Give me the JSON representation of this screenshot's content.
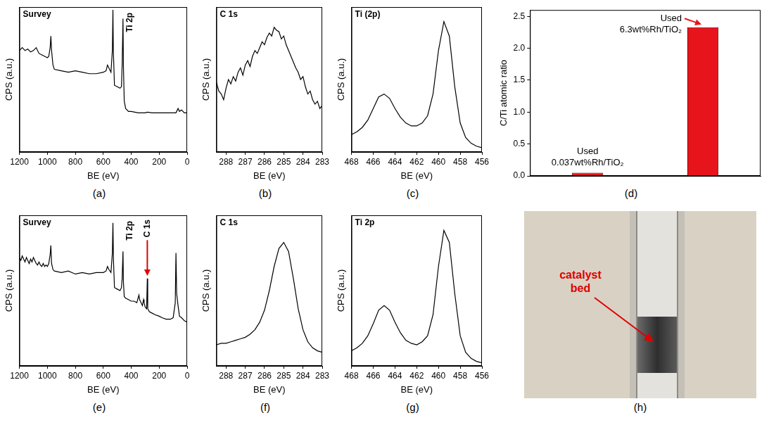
{
  "chart_data": [
    {
      "panel": "(a)",
      "type": "line",
      "title": "Survey",
      "x_label": "BE (eV)",
      "y_label": "CPS (a.u.)",
      "x": [
        1200,
        1180,
        1160,
        1140,
        1120,
        1100,
        1080,
        1060,
        1040,
        1020,
        1000,
        990,
        980,
        975,
        970,
        960,
        950,
        900,
        850,
        800,
        750,
        700,
        650,
        600,
        580,
        570,
        560,
        545,
        535,
        531,
        528,
        520,
        500,
        480,
        470,
        465,
        459,
        456,
        450,
        440,
        420,
        400,
        350,
        300,
        285,
        250,
        200,
        150,
        100,
        80,
        65,
        55,
        40,
        20,
        0
      ],
      "values": [
        70,
        72,
        70,
        71,
        69,
        70,
        72,
        68,
        67,
        66,
        65,
        66,
        72,
        80,
        70,
        60,
        57,
        56,
        55,
        56,
        55,
        54,
        54,
        55,
        56,
        60,
        58,
        55,
        70,
        98,
        70,
        46,
        45,
        44,
        45,
        60,
        92,
        60,
        35,
        30,
        28,
        28,
        27,
        27,
        27.5,
        27,
        27,
        27,
        27,
        27,
        30,
        28,
        29,
        27,
        27
      ],
      "color": "#000000",
      "xlim": [
        1200,
        0
      ],
      "xticks": [
        1200,
        1000,
        800,
        600,
        400,
        200,
        0
      ],
      "ylim": [
        0,
        100
      ],
      "yticks": [],
      "grid": false,
      "tick_labels": "x",
      "annotations": [
        {
          "text": "Ti 2p",
          "x": 459
        }
      ]
    },
    {
      "panel": "(b)",
      "type": "line",
      "title": "C 1s",
      "x_label": "BE (eV)",
      "y_label": "CPS (a.u.)",
      "x": [
        288.5,
        288.375,
        288.25,
        288.125,
        288,
        287.875,
        287.75,
        287.625,
        287.5,
        287.375,
        287.25,
        287.125,
        287,
        286.875,
        286.75,
        286.625,
        286.5,
        286.375,
        286.25,
        286.125,
        286,
        285.875,
        285.75,
        285.625,
        285.5,
        285.375,
        285.25,
        285.125,
        285,
        284.875,
        284.75,
        284.625,
        284.5,
        284.375,
        284.25,
        284.125,
        284,
        283.875,
        283.75,
        283.625,
        283.5,
        283.375,
        283.25,
        283.125,
        283
      ],
      "values": [
        48,
        42,
        40,
        36,
        44,
        50,
        47,
        52,
        49,
        55,
        58,
        53,
        60,
        63,
        59,
        66,
        70,
        68,
        72,
        76,
        74,
        79,
        82,
        80,
        86,
        84,
        83,
        78,
        80,
        74,
        70,
        66,
        62,
        58,
        55,
        50,
        52,
        45,
        40,
        42,
        36,
        33,
        35,
        30,
        32
      ],
      "color": "#000000",
      "xlim": [
        288.5,
        283
      ],
      "xticks": [
        288,
        287,
        286,
        285,
        284,
        283
      ],
      "ylim": [
        0,
        100
      ],
      "yticks": [],
      "grid": false,
      "tick_labels": "x"
    },
    {
      "panel": "(c)",
      "type": "line",
      "title": "Ti (2p)",
      "x_label": "BE (eV)",
      "y_label": "CPS (a.u.)",
      "x": [
        468,
        467.5,
        467,
        466.5,
        466,
        465.5,
        465,
        464.5,
        464,
        463.5,
        463,
        462.5,
        462,
        461.5,
        461,
        460.5,
        460,
        459.5,
        459,
        458.5,
        458,
        457.5,
        457,
        456.5,
        456
      ],
      "values": [
        12,
        14,
        17,
        22,
        30,
        38,
        40,
        37,
        30,
        24,
        20,
        18,
        18,
        20,
        25,
        40,
        70,
        90,
        80,
        45,
        20,
        10,
        6,
        4,
        3
      ],
      "color": "#000000",
      "xlim": [
        468,
        456
      ],
      "xticks": [
        468,
        466,
        464,
        462,
        460,
        458,
        456
      ],
      "ylim": [
        0,
        100
      ],
      "yticks": [],
      "grid": false,
      "tick_labels": "x"
    },
    {
      "panel": "(d)",
      "type": "bar",
      "y_label": "C/Ti atomic ratio",
      "categories": [
        null,
        null
      ],
      "values": [
        0.05,
        2.33
      ],
      "color": "#e8141b",
      "ylim": [
        0,
        2.6
      ],
      "yticks": [
        {
          "value": 0,
          "label": "0.0"
        },
        {
          "value": 0.5,
          "label": "0.5"
        },
        {
          "value": 1,
          "label": "1.0"
        },
        {
          "value": 1.5,
          "label": "1.5"
        },
        {
          "value": 2,
          "label": "2.0"
        },
        {
          "value": 2.5,
          "label": "2.5"
        }
      ],
      "grid": false,
      "tick_labels": "y",
      "annotations": [
        {
          "text": [
            "Used",
            "0.037wt%Rh/TiO₂"
          ],
          "category": 0
        },
        {
          "text": [
            "Used",
            "6.3wt%Rh/TiO₂"
          ],
          "category": 1
        }
      ]
    },
    {
      "panel": "(e)",
      "type": "line",
      "title": "Survey",
      "x_label": "BE (eV)",
      "y_label": "CPS (a.u.)",
      "x": [
        1200,
        1190,
        1180,
        1170,
        1160,
        1150,
        1140,
        1130,
        1120,
        1110,
        1100,
        1090,
        1080,
        1070,
        1060,
        1050,
        1040,
        1030,
        1020,
        1010,
        1000,
        990,
        980,
        975,
        970,
        960,
        950,
        900,
        850,
        800,
        750,
        700,
        650,
        600,
        580,
        570,
        560,
        545,
        535,
        531,
        527,
        520,
        500,
        480,
        470,
        465,
        459,
        456,
        450,
        440,
        420,
        400,
        380,
        360,
        345,
        340,
        330,
        320,
        312,
        308,
        300,
        290,
        285,
        282,
        270,
        250,
        230,
        200,
        180,
        150,
        120,
        100,
        85,
        80,
        75,
        65,
        55,
        40,
        20,
        0
      ],
      "values": [
        72,
        70,
        73,
        71,
        69,
        72,
        70,
        68,
        71,
        69,
        72,
        70,
        68,
        67,
        69,
        67,
        66,
        68,
        66,
        67,
        66,
        68,
        74,
        80,
        68,
        64,
        63,
        62,
        63,
        61,
        62,
        61,
        62,
        62,
        63,
        66,
        64,
        62,
        75,
        95,
        70,
        52,
        51,
        50,
        52,
        58,
        76,
        56,
        46,
        45,
        44,
        43,
        43,
        42,
        47,
        44,
        42,
        40,
        44,
        42,
        39,
        38,
        58,
        38,
        36,
        35,
        34,
        33,
        32,
        31,
        31,
        32,
        42,
        75,
        48,
        40,
        33,
        32,
        30,
        29
      ],
      "color": "#000000",
      "xlim": [
        1200,
        0
      ],
      "xticks": [
        1200,
        1000,
        800,
        600,
        400,
        200,
        0
      ],
      "ylim": [
        0,
        100
      ],
      "yticks": [],
      "grid": false,
      "tick_labels": "x",
      "annotations": [
        {
          "text": "Ti 2p",
          "x": 459
        },
        {
          "text": "C 1s",
          "x": 285,
          "color": "#e00000"
        }
      ]
    },
    {
      "panel": "(f)",
      "type": "line",
      "title": "C 1s",
      "x_label": "BE (eV)",
      "y_label": "CPS (a.u.)",
      "x": [
        288.5,
        288.25,
        288,
        287.75,
        287.5,
        287.25,
        287,
        286.75,
        286.5,
        286.25,
        286,
        285.75,
        285.5,
        285.25,
        285,
        284.75,
        284.5,
        284.25,
        284,
        283.75,
        283.5,
        283.25,
        283
      ],
      "values": [
        14,
        15,
        15,
        16,
        17,
        18,
        19,
        21,
        24,
        29,
        37,
        50,
        66,
        78,
        82,
        76,
        58,
        38,
        24,
        16,
        12,
        10,
        9
      ],
      "color": "#000000",
      "xlim": [
        288.5,
        283
      ],
      "xticks": [
        288,
        287,
        286,
        285,
        284,
        283
      ],
      "ylim": [
        0,
        100
      ],
      "yticks": [],
      "grid": false,
      "tick_labels": "x"
    },
    {
      "panel": "(g)",
      "type": "line",
      "title": "Ti 2p",
      "x_label": "BE (eV)",
      "y_label": "CPS (a.u.)",
      "x": [
        468,
        467.5,
        467,
        466.5,
        466,
        465.5,
        465,
        464.5,
        464,
        463.5,
        463,
        462.5,
        462,
        461.5,
        461,
        460.5,
        460,
        459.5,
        459,
        458.5,
        458,
        457.5,
        457,
        456.5,
        456
      ],
      "values": [
        10,
        12,
        15,
        20,
        28,
        37,
        40,
        37,
        29,
        22,
        17,
        15,
        14,
        16,
        20,
        34,
        66,
        90,
        82,
        48,
        20,
        9,
        5,
        3,
        2
      ],
      "color": "#000000",
      "xlim": [
        468,
        456
      ],
      "xticks": [
        468,
        466,
        464,
        462,
        460,
        458,
        456
      ],
      "ylim": [
        0,
        100
      ],
      "yticks": [],
      "grid": false,
      "tick_labels": "x"
    }
  ],
  "photo": {
    "panel": "(h)",
    "annotation": "catalyst bed",
    "color": "#e00000"
  }
}
